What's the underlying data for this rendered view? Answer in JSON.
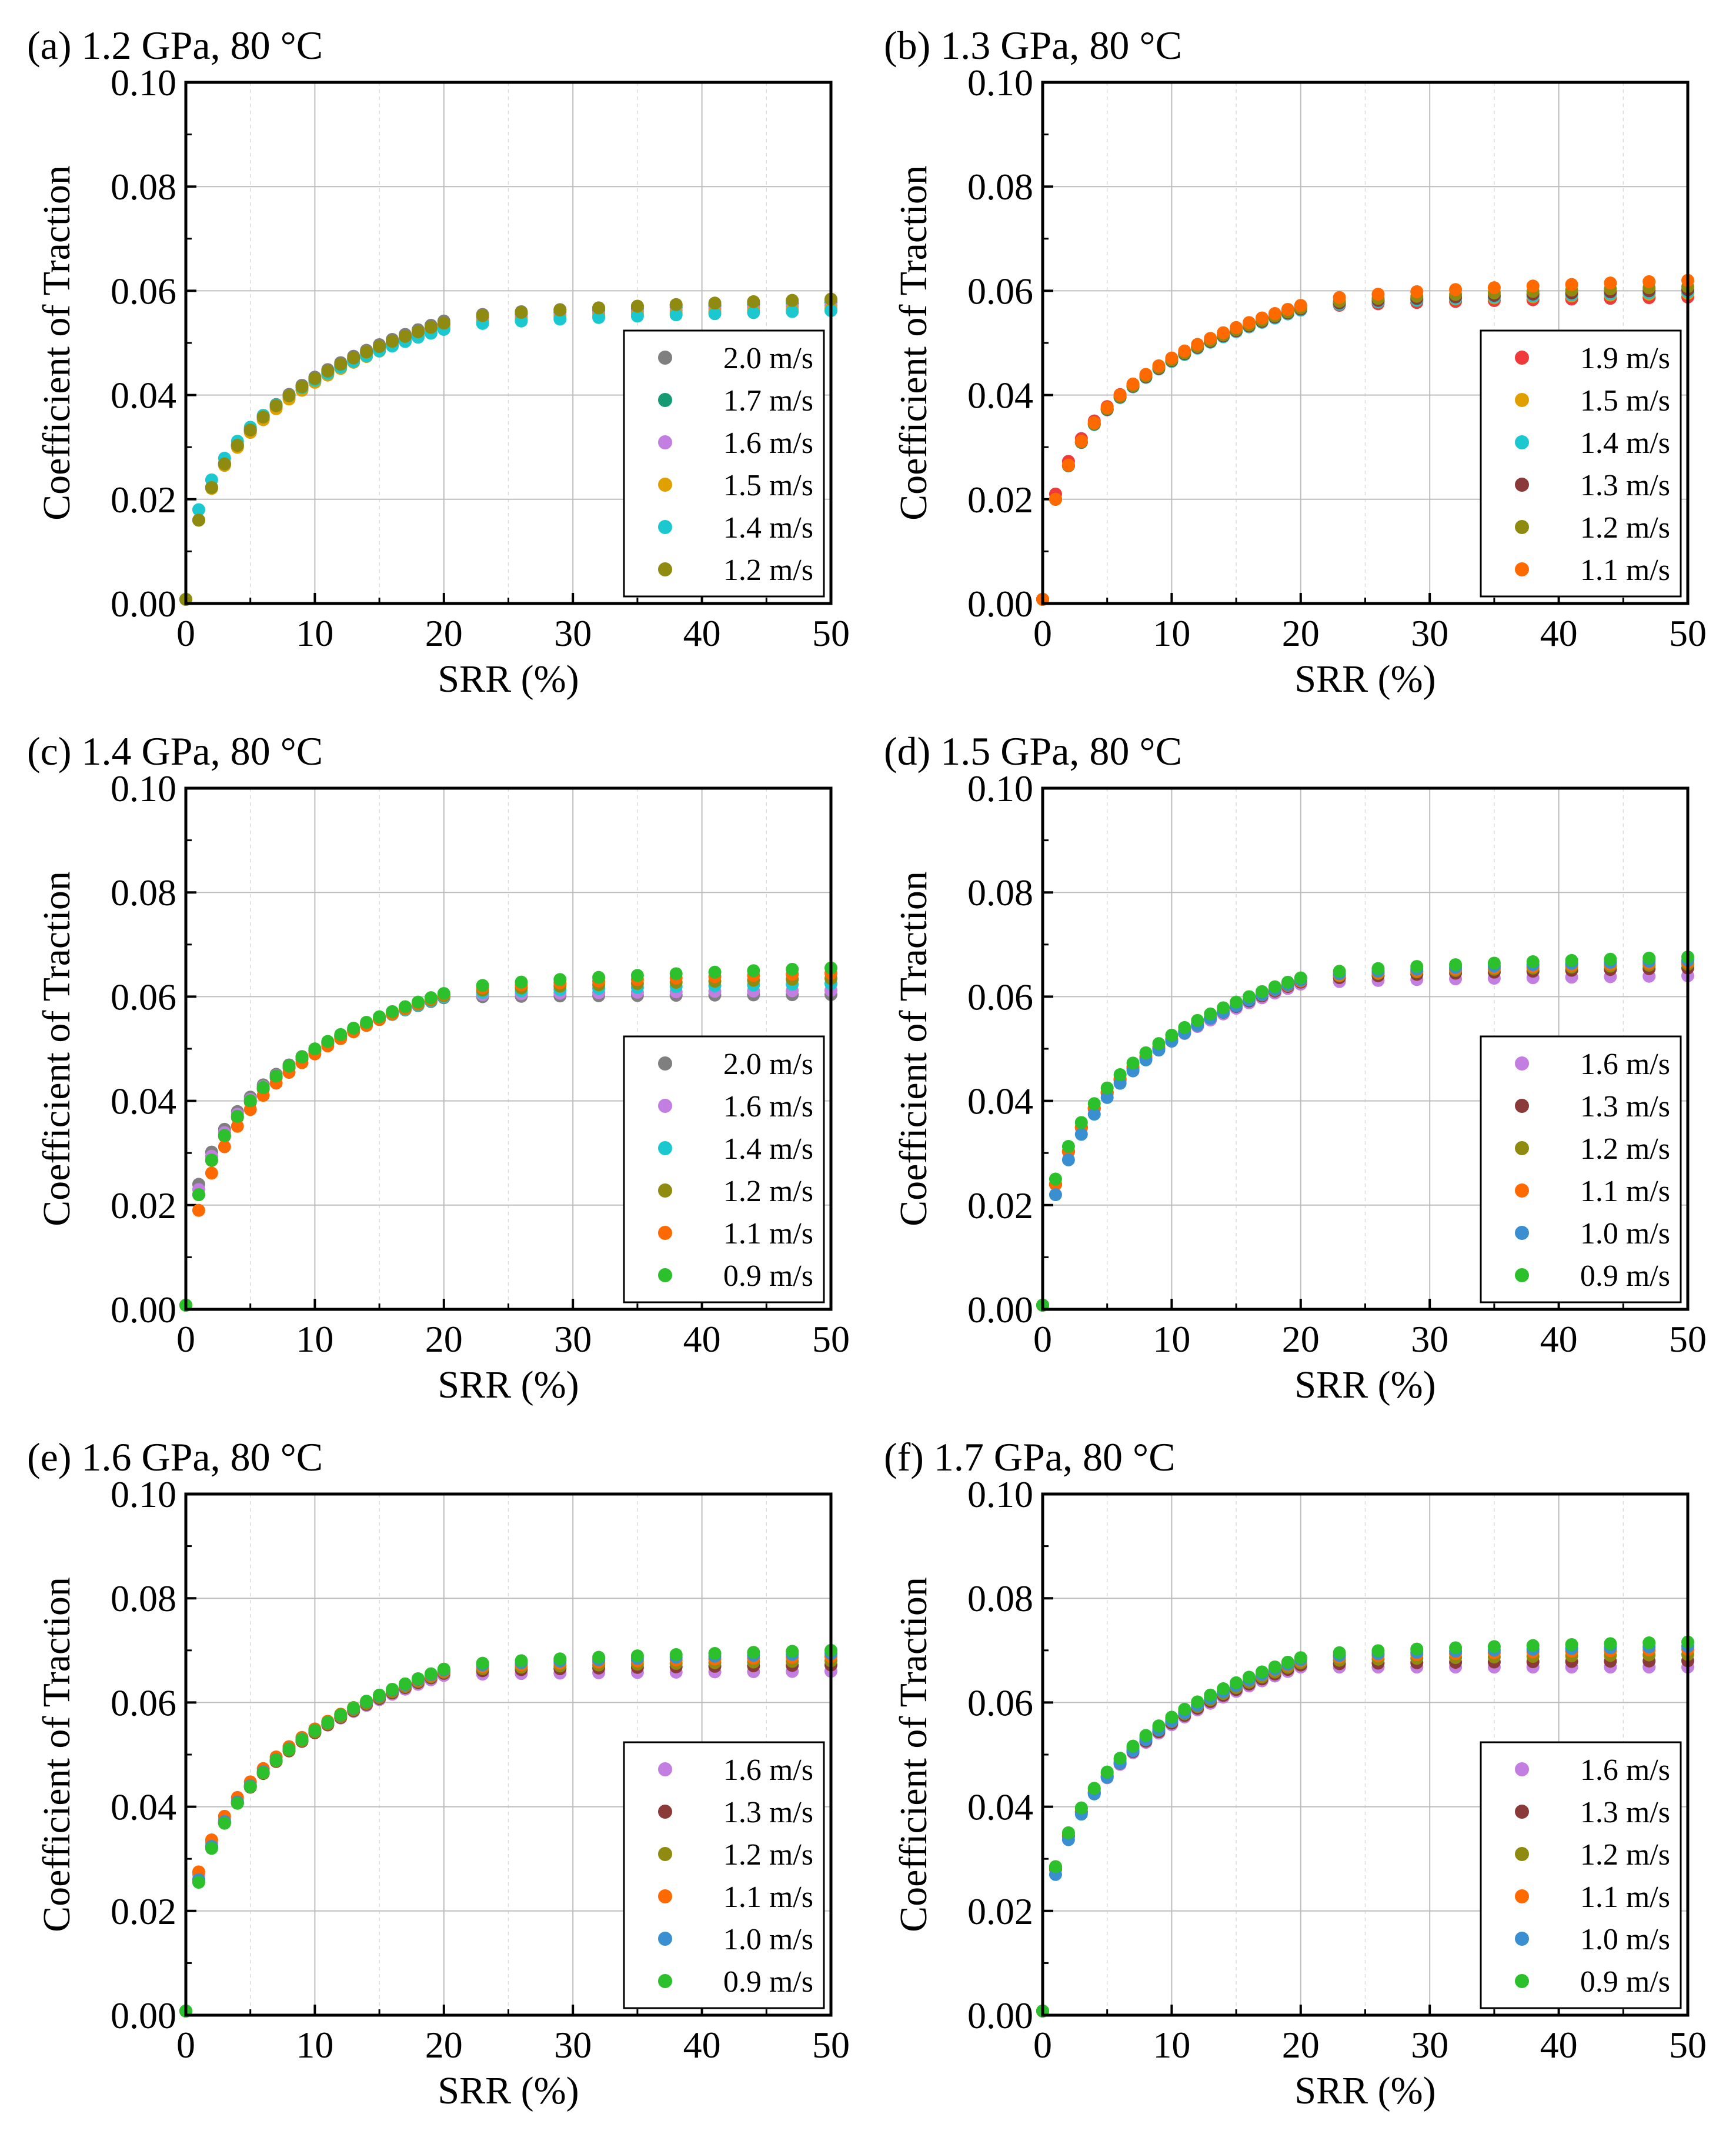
{
  "colors": {
    "2.0 m/s": "#7f7f7f",
    "1.9 m/s": "#f0393b",
    "1.7 m/s": "#159a73",
    "1.6 m/s": "#c27ee0",
    "1.5 m/s": "#e0a000",
    "1.4 m/s": "#1cc8cf",
    "1.3 m/s": "#8b3a3a",
    "1.2 m/s": "#8e8b10",
    "1.1 m/s": "#ff6a00",
    "1.0 m/s": "#3a8fd0",
    "0.9 m/s": "#2cc02c"
  },
  "chart_data": [
    {
      "type": "scatter",
      "title": "(a) 1.2 GPa, 80 °C",
      "xlabel": "SRR (%)",
      "ylabel": "Coefficient of Traction",
      "xlim": [
        0,
        50
      ],
      "ylim": [
        0,
        0.1
      ],
      "xticks": [
        "0",
        "10",
        "20",
        "30",
        "40",
        "50"
      ],
      "yticks": [
        "0.00",
        "0.02",
        "0.04",
        "0.06",
        "0.08",
        "0.10"
      ],
      "grid": true,
      "legend_position": "lower-right",
      "series": [
        {
          "name": "2.0 m/s",
          "x1": 1.6,
          "k": 2.2,
          "y20": 0.0542,
          "y50": 0.0582
        },
        {
          "name": "1.7 m/s",
          "x1": 1.6,
          "k": 2.2,
          "y20": 0.0536,
          "y50": 0.0578
        },
        {
          "name": "1.6 m/s",
          "x1": 1.6,
          "k": 2.2,
          "y20": 0.0532,
          "y50": 0.0572
        },
        {
          "name": "1.5 m/s",
          "x1": 1.6,
          "k": 2.2,
          "y20": 0.0528,
          "y50": 0.0566
        },
        {
          "name": "1.4 m/s",
          "x1": 1.8,
          "k": 2.2,
          "y20": 0.0526,
          "y50": 0.0562
        },
        {
          "name": "1.2 m/s",
          "x1": 1.6,
          "k": 2.2,
          "y20": 0.0538,
          "y50": 0.0584
        }
      ]
    },
    {
      "type": "scatter",
      "title": "(b) 1.3 GPa, 80 °C",
      "xlabel": "SRR (%)",
      "ylabel": "Coefficient of Traction",
      "xlim": [
        0,
        50
      ],
      "ylim": [
        0,
        0.1
      ],
      "xticks": [
        "0",
        "10",
        "20",
        "30",
        "40",
        "50"
      ],
      "yticks": [
        "0.00",
        "0.02",
        "0.04",
        "0.06",
        "0.08",
        "0.10"
      ],
      "grid": true,
      "legend_position": "lower-right",
      "series": [
        {
          "name": "1.9 m/s",
          "x1": 2.1,
          "k": 1.9,
          "y20": 0.0565,
          "y50": 0.0588
        },
        {
          "name": "1.5 m/s",
          "x1": 2.0,
          "k": 1.9,
          "y20": 0.0566,
          "y50": 0.0595
        },
        {
          "name": "1.4 m/s",
          "x1": 2.0,
          "k": 1.9,
          "y20": 0.0563,
          "y50": 0.0598
        },
        {
          "name": "1.3 m/s",
          "x1": 2.0,
          "k": 1.9,
          "y20": 0.0565,
          "y50": 0.0602
        },
        {
          "name": "1.2 m/s",
          "x1": 2.0,
          "k": 1.9,
          "y20": 0.0567,
          "y50": 0.0608
        },
        {
          "name": "1.1 m/s",
          "x1": 2.0,
          "k": 1.9,
          "y20": 0.0572,
          "y50": 0.062
        }
      ]
    },
    {
      "type": "scatter",
      "title": "(c) 1.4 GPa, 80 °C",
      "xlabel": "SRR (%)",
      "ylabel": "Coefficient of Traction",
      "xlim": [
        0,
        50
      ],
      "ylim": [
        0,
        0.1
      ],
      "xticks": [
        "0",
        "10",
        "20",
        "30",
        "40",
        "50"
      ],
      "yticks": [
        "0.00",
        "0.02",
        "0.04",
        "0.06",
        "0.08",
        "0.10"
      ],
      "grid": true,
      "legend_position": "lower-right",
      "series": [
        {
          "name": "2.0 m/s",
          "x1": 2.4,
          "k": 2.0,
          "y20": 0.0598,
          "y50": 0.0604
        },
        {
          "name": "1.6 m/s",
          "x1": 2.3,
          "k": 2.0,
          "y20": 0.06,
          "y50": 0.0612
        },
        {
          "name": "1.4 m/s",
          "x1": 2.2,
          "k": 2.0,
          "y20": 0.06,
          "y50": 0.0625
        },
        {
          "name": "1.2 m/s",
          "x1": 2.2,
          "k": 2.0,
          "y20": 0.0602,
          "y50": 0.0635
        },
        {
          "name": "1.1 m/s",
          "x1": 1.9,
          "k": 2.0,
          "y20": 0.0604,
          "y50": 0.0645
        },
        {
          "name": "0.9 m/s",
          "x1": 2.2,
          "k": 2.0,
          "y20": 0.0606,
          "y50": 0.0655
        }
      ]
    },
    {
      "type": "scatter",
      "title": "(d) 1.5 GPa, 80 °C",
      "xlabel": "SRR (%)",
      "ylabel": "Coefficient of Traction",
      "xlim": [
        0,
        50
      ],
      "ylim": [
        0,
        0.1
      ],
      "xticks": [
        "0",
        "10",
        "20",
        "30",
        "40",
        "50"
      ],
      "yticks": [
        "0.00",
        "0.02",
        "0.04",
        "0.06",
        "0.08",
        "0.10"
      ],
      "grid": true,
      "legend_position": "lower-right",
      "series": [
        {
          "name": "1.6 m/s",
          "x1": 2.4,
          "k": 2.3,
          "y20": 0.0624,
          "y50": 0.064
        },
        {
          "name": "1.3 m/s",
          "x1": 2.4,
          "k": 2.3,
          "y20": 0.0628,
          "y50": 0.0655
        },
        {
          "name": "1.2 m/s",
          "x1": 2.4,
          "k": 2.3,
          "y20": 0.063,
          "y50": 0.0662
        },
        {
          "name": "1.1 m/s",
          "x1": 2.4,
          "k": 2.3,
          "y20": 0.063,
          "y50": 0.0666
        },
        {
          "name": "1.0 m/s",
          "x1": 2.2,
          "k": 2.3,
          "y20": 0.0632,
          "y50": 0.067
        },
        {
          "name": "0.9 m/s",
          "x1": 2.5,
          "k": 2.3,
          "y20": 0.0636,
          "y50": 0.0676
        }
      ]
    },
    {
      "type": "scatter",
      "title": "(e) 1.6 GPa, 80 °C",
      "xlabel": "SRR (%)",
      "ylabel": "Coefficient of Traction",
      "xlim": [
        0,
        50
      ],
      "ylim": [
        0,
        0.1
      ],
      "xticks": [
        "0",
        "10",
        "20",
        "30",
        "40",
        "50"
      ],
      "yticks": [
        "0.00",
        "0.02",
        "0.04",
        "0.06",
        "0.08",
        "0.10"
      ],
      "grid": true,
      "legend_position": "lower-right",
      "series": [
        {
          "name": "1.6 m/s",
          "x1": 2.7,
          "k": 2.4,
          "y20": 0.0652,
          "y50": 0.066
        },
        {
          "name": "1.3 m/s",
          "x1": 2.6,
          "k": 2.4,
          "y20": 0.0656,
          "y50": 0.0672
        },
        {
          "name": "1.2 m/s",
          "x1": 2.6,
          "k": 2.4,
          "y20": 0.0658,
          "y50": 0.068
        },
        {
          "name": "1.1 m/s",
          "x1": 2.75,
          "k": 2.4,
          "y20": 0.066,
          "y50": 0.0688
        },
        {
          "name": "1.0 m/s",
          "x1": 2.6,
          "k": 2.4,
          "y20": 0.0662,
          "y50": 0.0694
        },
        {
          "name": "0.9 m/s",
          "x1": 2.55,
          "k": 2.4,
          "y20": 0.0664,
          "y50": 0.07
        }
      ]
    },
    {
      "type": "scatter",
      "title": "(f) 1.7 GPa, 80 °C",
      "xlabel": "SRR (%)",
      "ylabel": "Coefficient of Traction",
      "xlim": [
        0,
        50
      ],
      "ylim": [
        0,
        0.1
      ],
      "xticks": [
        "0",
        "10",
        "20",
        "30",
        "40",
        "50"
      ],
      "yticks": [
        "0.00",
        "0.02",
        "0.04",
        "0.06",
        "0.08",
        "0.10"
      ],
      "grid": true,
      "legend_position": "lower-right",
      "series": [
        {
          "name": "1.6 m/s",
          "x1": 2.8,
          "k": 2.3,
          "y20": 0.0668,
          "y50": 0.0668
        },
        {
          "name": "1.3 m/s",
          "x1": 2.8,
          "k": 2.3,
          "y20": 0.0672,
          "y50": 0.068
        },
        {
          "name": "1.2 m/s",
          "x1": 2.8,
          "k": 2.3,
          "y20": 0.0676,
          "y50": 0.0692
        },
        {
          "name": "1.1 m/s",
          "x1": 2.85,
          "k": 2.3,
          "y20": 0.068,
          "y50": 0.0702
        },
        {
          "name": "1.0 m/s",
          "x1": 2.7,
          "k": 2.3,
          "y20": 0.0682,
          "y50": 0.0708
        },
        {
          "name": "0.9 m/s",
          "x1": 2.85,
          "k": 2.3,
          "y20": 0.0686,
          "y50": 0.0716
        }
      ]
    }
  ]
}
